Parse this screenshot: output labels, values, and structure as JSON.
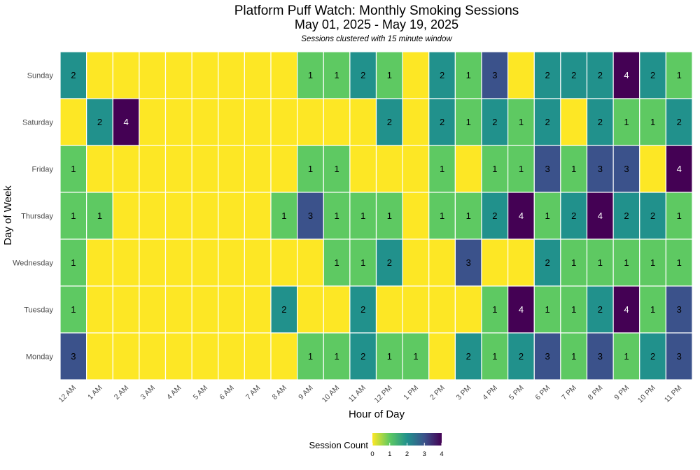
{
  "chart_data": {
    "type": "heatmap",
    "title": "Platform Puff Watch: Monthly Smoking Sessions",
    "subtitle": "May 01, 2025 - May 19, 2025",
    "caption": "Sessions clustered with 15 minute window",
    "xlabel": "Hour of Day",
    "ylabel": "Day of Week",
    "x": [
      "12 AM",
      "1 AM",
      "2 AM",
      "3 AM",
      "4 AM",
      "5 AM",
      "6 AM",
      "7 AM",
      "8 AM",
      "9 AM",
      "10 AM",
      "11 AM",
      "12 PM",
      "1 PM",
      "2 PM",
      "3 PM",
      "4 PM",
      "5 PM",
      "6 PM",
      "7 PM",
      "8 PM",
      "9 PM",
      "10 PM",
      "11 PM"
    ],
    "y": [
      "Sunday",
      "Saturday",
      "Friday",
      "Thursday",
      "Wednesday",
      "Tuesday",
      "Monday"
    ],
    "values": [
      [
        2,
        0,
        0,
        0,
        0,
        0,
        0,
        0,
        0,
        1,
        1,
        2,
        1,
        0,
        2,
        1,
        3,
        0,
        2,
        2,
        2,
        4,
        2,
        1
      ],
      [
        0,
        2,
        4,
        0,
        0,
        0,
        0,
        0,
        0,
        0,
        0,
        0,
        2,
        0,
        2,
        1,
        2,
        1,
        2,
        0,
        2,
        1,
        1,
        2
      ],
      [
        1,
        0,
        0,
        0,
        0,
        0,
        0,
        0,
        0,
        1,
        1,
        0,
        0,
        0,
        1,
        0,
        1,
        1,
        3,
        1,
        3,
        3,
        0,
        4
      ],
      [
        1,
        1,
        0,
        0,
        0,
        0,
        0,
        0,
        1,
        3,
        1,
        1,
        1,
        0,
        1,
        1,
        2,
        4,
        1,
        2,
        4,
        2,
        2,
        1
      ],
      [
        1,
        0,
        0,
        0,
        0,
        0,
        0,
        0,
        0,
        0,
        1,
        1,
        2,
        0,
        0,
        3,
        0,
        0,
        2,
        1,
        1,
        1,
        1,
        1
      ],
      [
        1,
        0,
        0,
        0,
        0,
        0,
        0,
        0,
        2,
        0,
        0,
        2,
        0,
        0,
        0,
        0,
        1,
        4,
        1,
        1,
        2,
        4,
        1,
        3
      ],
      [
        3,
        0,
        0,
        0,
        0,
        0,
        0,
        0,
        0,
        1,
        1,
        2,
        1,
        1,
        0,
        2,
        1,
        2,
        3,
        1,
        3,
        1,
        2,
        3
      ]
    ],
    "color_scale": {
      "name": "viridis-reversed",
      "stops": [
        {
          "value": 0,
          "color": "#fde725"
        },
        {
          "value": 1,
          "color": "#5ec962"
        },
        {
          "value": 2,
          "color": "#21918c"
        },
        {
          "value": 3,
          "color": "#3b528b"
        },
        {
          "value": 4,
          "color": "#440154"
        }
      ]
    },
    "legend": {
      "title": "Session Count",
      "ticks": [
        "0",
        "1",
        "2",
        "3",
        "4"
      ],
      "placement": "bottom"
    }
  }
}
